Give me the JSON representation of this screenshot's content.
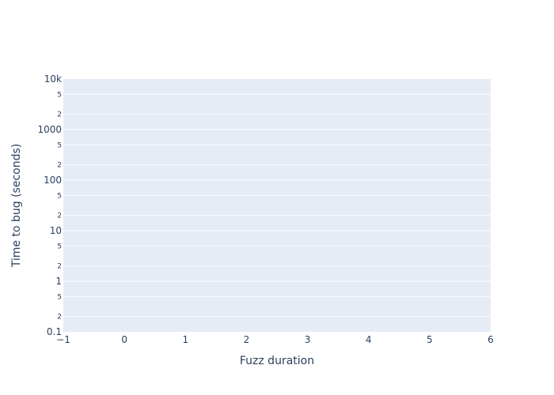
{
  "chart_data": {
    "type": "scatter",
    "title": "",
    "xlabel": "Fuzz duration",
    "ylabel": "Time to bug (seconds)",
    "xlim": [
      -1,
      6
    ],
    "ylim": [
      0.1,
      10000
    ],
    "y_scale": "log",
    "x_ticks": [
      "−1",
      "0",
      "1",
      "2",
      "3",
      "4",
      "5",
      "6"
    ],
    "y_major_ticks": [
      {
        "value": 0.1,
        "label": "0.1"
      },
      {
        "value": 1,
        "label": "1"
      },
      {
        "value": 10,
        "label": "10"
      },
      {
        "value": 100,
        "label": "100"
      },
      {
        "value": 1000,
        "label": "1000"
      },
      {
        "value": 10000,
        "label": "10k"
      }
    ],
    "y_minor_ticks": [
      {
        "value": 0.2,
        "label": "2"
      },
      {
        "value": 0.5,
        "label": "5"
      },
      {
        "value": 2,
        "label": "2"
      },
      {
        "value": 5,
        "label": "5"
      },
      {
        "value": 20,
        "label": "2"
      },
      {
        "value": 50,
        "label": "5"
      },
      {
        "value": 200,
        "label": "2"
      },
      {
        "value": 500,
        "label": "5"
      },
      {
        "value": 2000,
        "label": "2"
      },
      {
        "value": 5000,
        "label": "5"
      }
    ],
    "series": [],
    "grid": true,
    "colors": {
      "plot_background": "#e5ecf6",
      "grid": "#ffffff",
      "text": "#2a3f5f"
    }
  }
}
